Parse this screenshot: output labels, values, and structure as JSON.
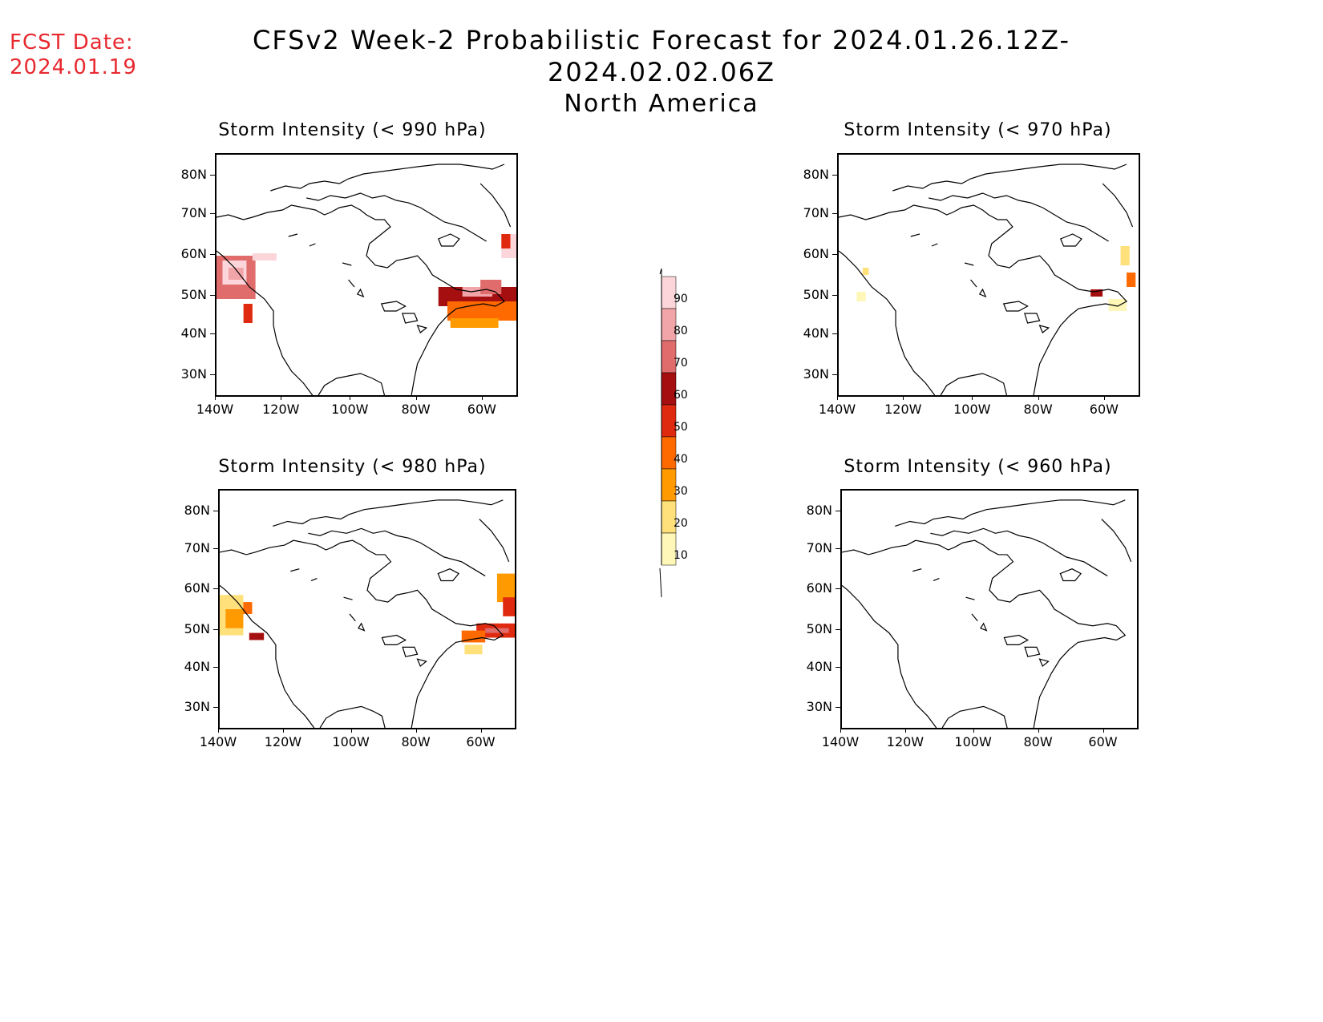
{
  "header": {
    "fcst_label": "FCST Date:",
    "fcst_date": "2024.01.19",
    "title": "CFSv2 Week-2 Probabilistic Forecast for 2024.01.26.12Z-2024.02.02.06Z",
    "subtitle": "North America"
  },
  "axes": {
    "lat_labels": [
      "80N",
      "70N",
      "60N",
      "50N",
      "40N",
      "30N"
    ],
    "lon_labels": [
      "140W",
      "120W",
      "100W",
      "80W",
      "60W"
    ]
  },
  "panels": [
    {
      "id": "p990",
      "title": "Storm Intensity (< 990 hPa)"
    },
    {
      "id": "p970",
      "title": "Storm Intensity (< 970 hPa)"
    },
    {
      "id": "p980",
      "title": "Storm Intensity (< 980 hPa)"
    },
    {
      "id": "p960",
      "title": "Storm Intensity (< 960 hPa)"
    }
  ],
  "colorbar": {
    "labels": [
      "90",
      "80",
      "70",
      "60",
      "50",
      "40",
      "30",
      "20",
      "10"
    ],
    "colors": [
      "#fbd5d9",
      "#f2a5a9",
      "#e06c6c",
      "#a50f0f",
      "#e02a10",
      "#ff6a00",
      "#ff9a00",
      "#ffe07a",
      "#fff7b8"
    ]
  },
  "legend_colors": {
    "c10": "#fff7b8",
    "c20": "#ffe07a",
    "c30": "#ff9a00",
    "c40": "#ff6a00",
    "c50": "#e02a10",
    "c60": "#a50f0f",
    "c70": "#e06c6c",
    "c80": "#f2a5a9",
    "c90": "#fbd5d9"
  }
}
